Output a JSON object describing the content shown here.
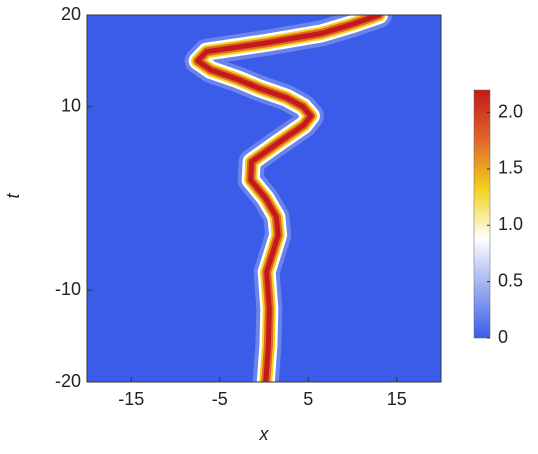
{
  "chart_data": {
    "type": "density",
    "xlabel": "x",
    "ylabel": "t",
    "xlim": [
      -20,
      20
    ],
    "xticks": [
      -15,
      -5,
      5,
      15
    ],
    "ylim": [
      -20,
      20
    ],
    "yticks": [
      -20,
      -10,
      10,
      20
    ],
    "t": [
      -20,
      -16,
      -12,
      -8,
      -4,
      -2,
      0,
      2,
      4,
      6,
      8,
      9,
      10,
      11,
      12,
      13,
      14,
      15,
      16,
      17,
      18,
      19,
      20
    ],
    "series": [
      {
        "values": [
          0.2,
          0.5,
          0.6,
          0.3,
          1.6,
          1.4,
          0.2,
          -1.5,
          -1.4,
          1.5,
          4.5,
          5.3,
          4.4,
          2.5,
          -0.5,
          -3.0,
          -6.0,
          -7.5,
          -6.5,
          0.5,
          6.5,
          10,
          13
        ]
      }
    ],
    "background": "#3a5ce8",
    "colors": [
      "#3a5ce8",
      "#9aacf0",
      "#ffffff",
      "#f2d21c",
      "#e0662a",
      "#c21a1a"
    ],
    "zlim": [
      0,
      2.2
    ],
    "zticks": [
      0,
      0.5,
      {
        "value": 1,
        "label": "1.0"
      },
      1.5,
      {
        "value": 2,
        "label": "2.0"
      }
    ]
  }
}
